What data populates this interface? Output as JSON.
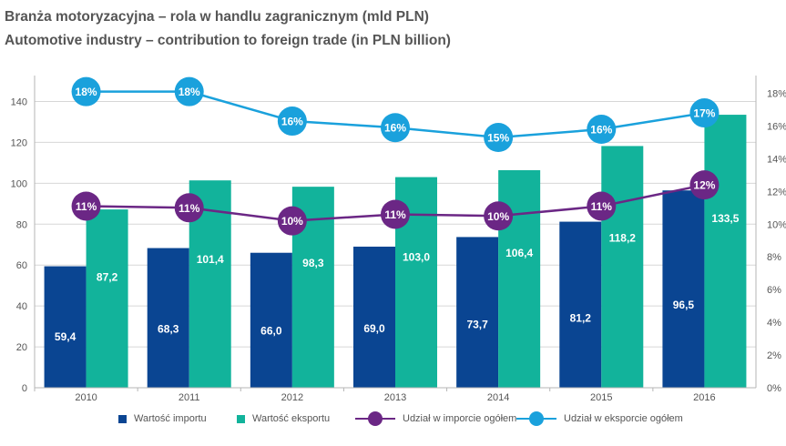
{
  "title_pl": "Branża motoryzacyjna – rola w handlu zagranicznym (mld PLN)",
  "title_en": "Automotive industry – contribution to foreign trade (in PLN billion)",
  "colors": {
    "import": "#0a4592",
    "export": "#12b39b",
    "import_share": "#6b2785",
    "export_share": "#1aa1dc",
    "grid": "#d7d7d7"
  },
  "chart_data": {
    "type": "bar",
    "categories": [
      "2010",
      "2011",
      "2012",
      "2013",
      "2014",
      "2015",
      "2016"
    ],
    "series": [
      {
        "name": "Wartość importu",
        "axis": "left",
        "kind": "bar",
        "values": [
          59.4,
          68.3,
          66.0,
          69.0,
          73.7,
          81.2,
          96.5
        ],
        "labels": [
          "59,4",
          "68,3",
          "66,0",
          "69,0",
          "73,7",
          "81,2",
          "96,5"
        ]
      },
      {
        "name": "Wartość eksportu",
        "axis": "left",
        "kind": "bar",
        "values": [
          87.2,
          101.4,
          98.3,
          103.0,
          106.4,
          118.2,
          133.5
        ],
        "labels": [
          "87,2",
          "101,4",
          "98,3",
          "103,0",
          "106,4",
          "118,2",
          "133,5"
        ]
      },
      {
        "name": "Udział w imporcie ogółem",
        "axis": "right",
        "kind": "line",
        "values": [
          11.1,
          11.0,
          10.2,
          10.6,
          10.5,
          11.1,
          12.4
        ],
        "labels": [
          "11%",
          "11%",
          "10%",
          "11%",
          "10%",
          "11%",
          "12%"
        ]
      },
      {
        "name": "Udział w eksporcie ogółem",
        "axis": "right",
        "kind": "line",
        "values": [
          18.1,
          18.1,
          16.3,
          15.9,
          15.3,
          15.8,
          16.8
        ],
        "labels": [
          "18%",
          "18%",
          "16%",
          "16%",
          "15%",
          "16%",
          "17%"
        ]
      }
    ],
    "left_axis": {
      "ylim": [
        0,
        150
      ],
      "ticks": [
        0,
        20,
        40,
        60,
        80,
        100,
        120,
        140
      ]
    },
    "right_axis": {
      "ylim": [
        0,
        18.75
      ],
      "ticks": [
        0,
        2,
        4,
        6,
        8,
        10,
        12,
        14,
        16,
        18
      ],
      "tick_labels": [
        "0%",
        "2%",
        "4%",
        "6%",
        "8%",
        "10%",
        "12%",
        "14%",
        "16%",
        "18%"
      ]
    },
    "legend_position": "bottom",
    "grid": true
  }
}
